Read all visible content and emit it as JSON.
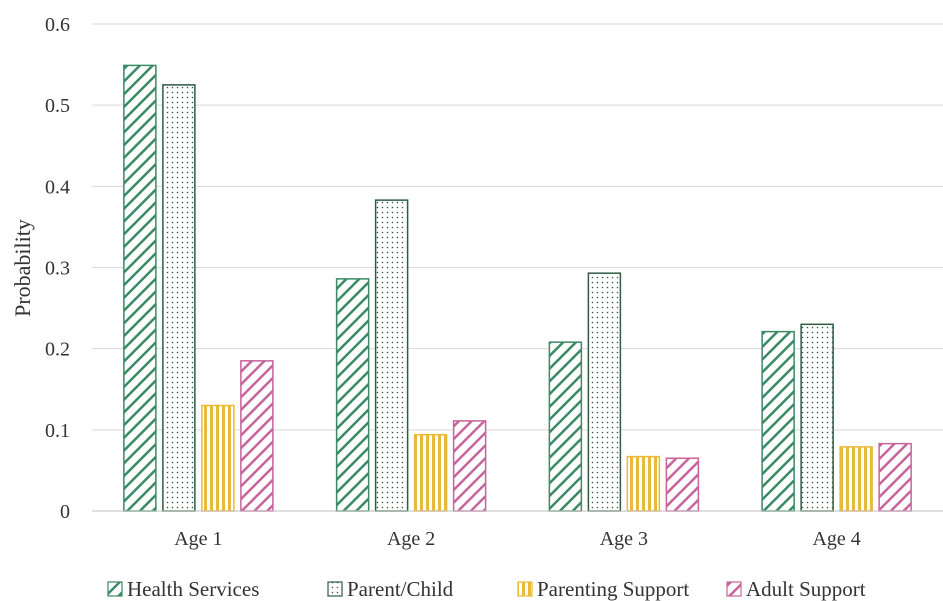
{
  "chart_data": {
    "type": "bar",
    "title": "",
    "xlabel": "",
    "ylabel": "Probability",
    "ylim": [
      0,
      0.6
    ],
    "yticks": [
      "0",
      "0.1",
      "0.2",
      "0.3",
      "0.4",
      "0.5",
      "0.6"
    ],
    "grid": true,
    "legend_position": "bottom",
    "categories": [
      "Age 1",
      "Age 2",
      "Age 3",
      "Age 4"
    ],
    "series": [
      {
        "name": "Health Services",
        "values": [
          0.549,
          0.286,
          0.208,
          0.221
        ],
        "color": "#3a8a66",
        "pattern": "diagonal-stripes"
      },
      {
        "name": "Parent/Child",
        "values": [
          0.525,
          0.383,
          0.293,
          0.23
        ],
        "color": "#2f5b43",
        "pattern": "dots"
      },
      {
        "name": "Parenting Support",
        "values": [
          0.13,
          0.094,
          0.067,
          0.079
        ],
        "color": "#e8b93a",
        "pattern": "vertical-stripes"
      },
      {
        "name": "Adult Support",
        "values": [
          0.185,
          0.111,
          0.065,
          0.083
        ],
        "color": "#c8639b",
        "pattern": "diagonal-stripes"
      }
    ]
  }
}
